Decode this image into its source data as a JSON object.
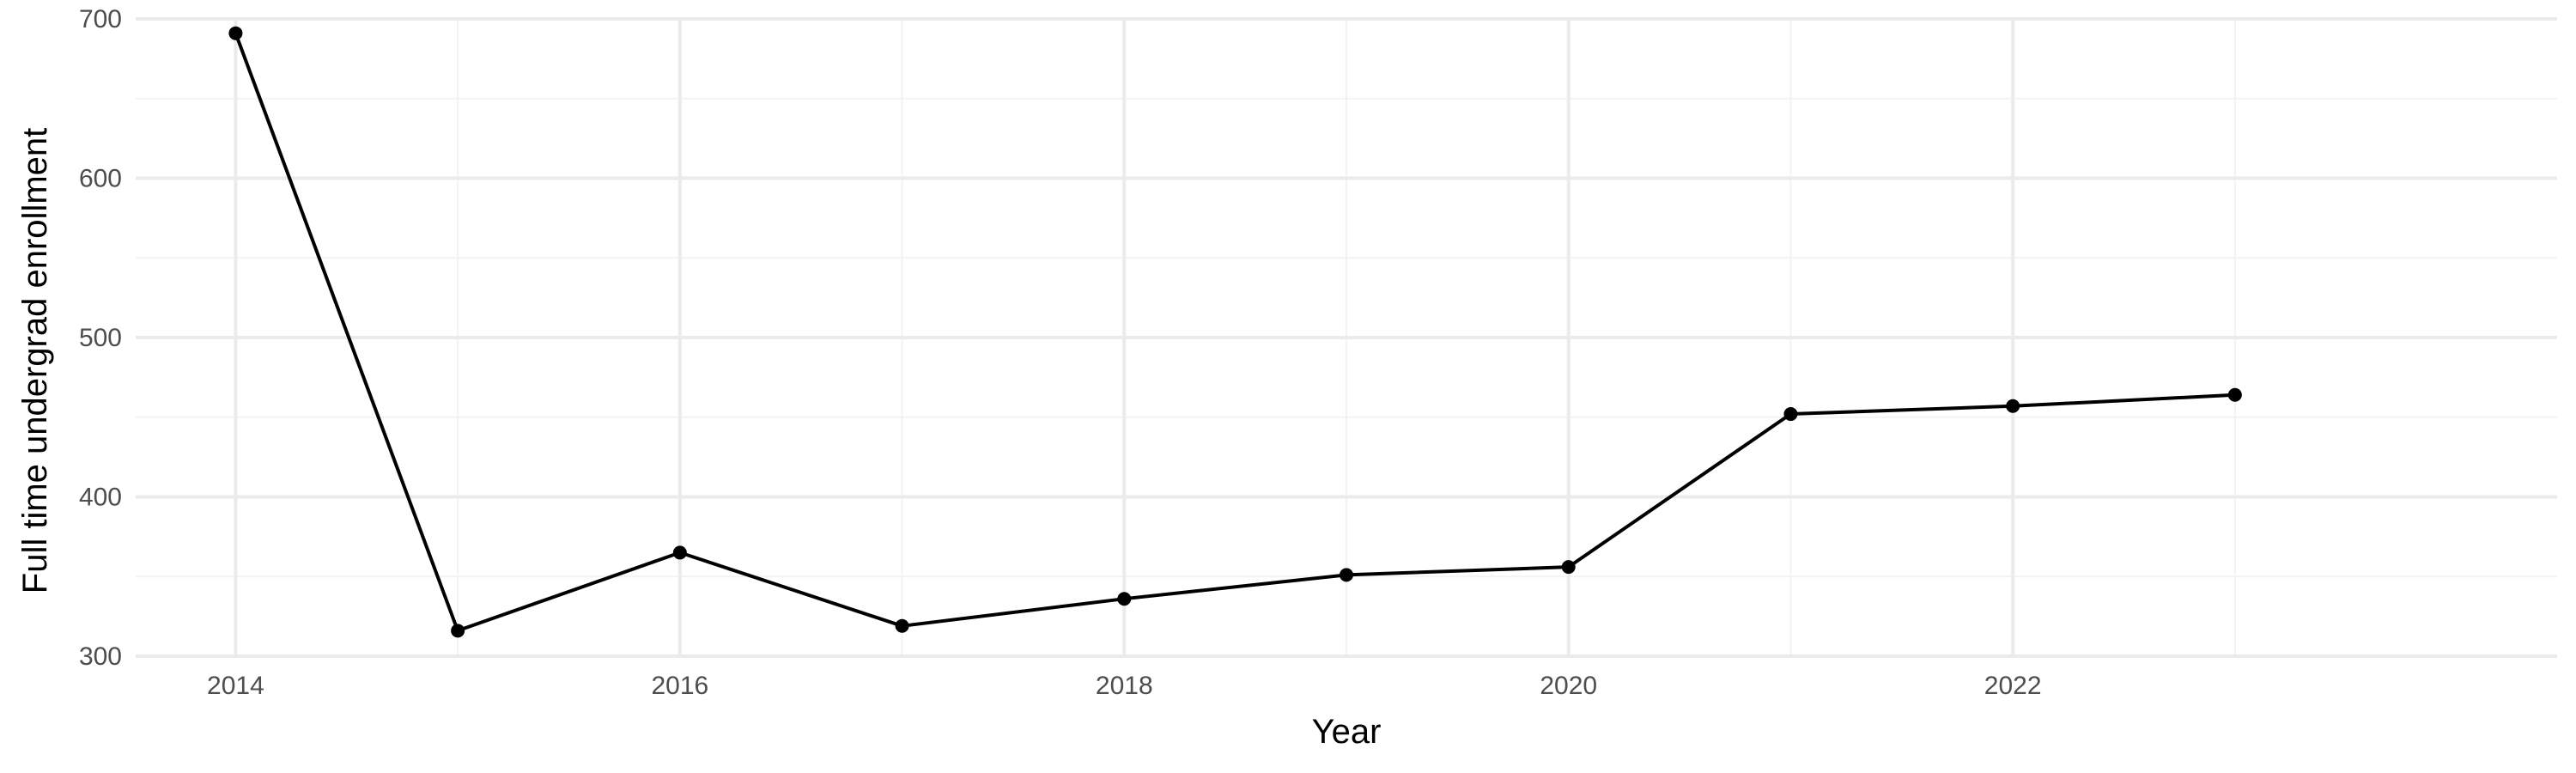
{
  "chart_data": {
    "type": "line",
    "title": "",
    "xlabel": "Year",
    "ylabel": "Full time undergrad enrollment",
    "xlim": [
      2013.55,
      2024.45
    ],
    "ylim": [
      300,
      700
    ],
    "x_ticks": [
      2014,
      2016,
      2018,
      2020,
      2022
    ],
    "y_ticks": [
      300,
      400,
      500,
      600,
      700
    ],
    "grid": true,
    "legend": "none",
    "series": [
      {
        "x": [
          2014,
          2015,
          2016,
          2017,
          2018,
          2019,
          2020,
          2021,
          2022,
          2023
        ],
        "values": [
          691,
          316,
          365,
          319,
          336,
          351,
          356,
          452,
          457,
          464
        ]
      }
    ],
    "colors": {
      "line": "#000000",
      "point": "#000000",
      "grid_major": "#ebebeb",
      "grid_minor": "#f3f3f3",
      "tick_text": "#4d4d4d"
    }
  }
}
